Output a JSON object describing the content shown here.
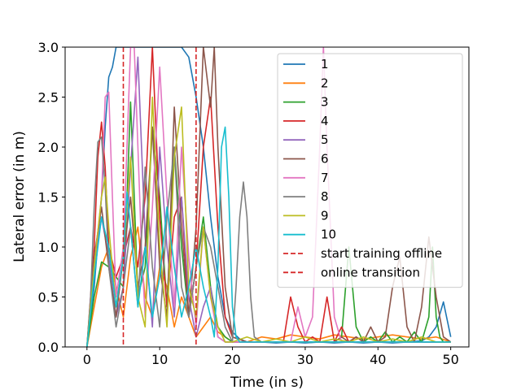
{
  "chart_data": {
    "type": "line",
    "xlabel": "Time (in s)",
    "ylabel": "Lateral error (in m)",
    "xlim": [
      -3,
      52.5
    ],
    "ylim": [
      0,
      3.0
    ],
    "xticks": [
      0,
      10,
      20,
      30,
      40,
      50
    ],
    "yticks": [
      0.0,
      0.5,
      1.0,
      1.5,
      2.0,
      2.5,
      3.0
    ],
    "xtick_labels": [
      "0",
      "10",
      "20",
      "30",
      "40",
      "50"
    ],
    "ytick_labels": [
      "0.0",
      "0.5",
      "1.0",
      "1.5",
      "2.0",
      "2.5",
      "3.0"
    ],
    "legend_position": "top-right",
    "grid": false,
    "vlines": [
      {
        "name": "start training offline",
        "x": 5,
        "color": "#d62728",
        "style": "dashed"
      },
      {
        "name": "online transition",
        "x": 15,
        "color": "#d62728",
        "style": "dashed"
      }
    ],
    "series": [
      {
        "name": "1",
        "color": "#1f77b4",
        "x": [
          0,
          1,
          2,
          2.5,
          3,
          3.5,
          4,
          5,
          5.5,
          6,
          7,
          8,
          9,
          10,
          11,
          12,
          13,
          14,
          15,
          16,
          17,
          18,
          19,
          20,
          21,
          22,
          24,
          26,
          28,
          30,
          32,
          34,
          36,
          38,
          40,
          42,
          44,
          46,
          47,
          48,
          49,
          50
        ],
        "y": [
          0,
          0.6,
          1.5,
          2.2,
          2.7,
          2.8,
          3,
          3,
          3,
          3,
          3,
          3,
          3,
          3,
          3,
          3,
          3,
          2.9,
          2.5,
          2.0,
          1.3,
          0.7,
          0.3,
          0.15,
          0.08,
          0.05,
          0.05,
          0.04,
          0.05,
          0.04,
          0.05,
          0.04,
          0.05,
          0.04,
          0.05,
          0.04,
          0.05,
          0.06,
          0.1,
          0.2,
          0.45,
          0.1
        ]
      },
      {
        "name": "2",
        "color": "#ff7f0e",
        "x": [
          0,
          1,
          2,
          3,
          4,
          5,
          6,
          7,
          8,
          9,
          10,
          11,
          12,
          13,
          14,
          15,
          16,
          17,
          18,
          19,
          20,
          22,
          24,
          26,
          28,
          30,
          32,
          34,
          36,
          38,
          40,
          42,
          44,
          46,
          48,
          50
        ],
        "y": [
          0,
          0.4,
          0.8,
          1.0,
          0.6,
          0.3,
          0.9,
          1.2,
          0.5,
          0.3,
          0.8,
          0.6,
          0.2,
          0.5,
          0.3,
          0.1,
          0.2,
          0.3,
          0.15,
          0.1,
          0.05,
          0.05,
          0.1,
          0.08,
          0.12,
          0.1,
          0.08,
          0.12,
          0.1,
          0.08,
          0.1,
          0.12,
          0.1,
          0.08,
          0.1,
          0.05
        ]
      },
      {
        "name": "3",
        "color": "#2ca02c",
        "x": [
          0,
          1,
          2,
          3,
          4,
          5,
          5.5,
          6,
          6.5,
          7,
          8,
          9,
          10,
          11,
          12,
          13,
          14,
          15,
          16,
          17,
          18,
          19,
          20,
          22,
          24,
          26,
          28,
          30,
          32,
          34,
          35,
          36,
          37,
          38,
          39,
          40,
          41,
          42,
          43,
          44,
          45,
          46,
          47,
          47.5,
          48,
          48.5,
          49,
          50
        ],
        "y": [
          0,
          0.5,
          0.85,
          0.8,
          0.7,
          0.6,
          1.5,
          2.45,
          1.5,
          0.5,
          0.8,
          2.2,
          1.5,
          0.4,
          2.0,
          1.0,
          0.3,
          0.8,
          1.3,
          0.6,
          0.2,
          0.1,
          0.05,
          0.05,
          0.05,
          0.05,
          0.05,
          0.05,
          0.05,
          0.05,
          0.1,
          1.0,
          0.2,
          0.05,
          0.1,
          0.05,
          0.15,
          0.05,
          0.1,
          0.05,
          0.15,
          0.05,
          0.3,
          1.0,
          0.3,
          0.1,
          0.05,
          0.05
        ]
      },
      {
        "name": "4",
        "color": "#d62728",
        "x": [
          0,
          1,
          1.5,
          2,
          2.5,
          3,
          4,
          5,
          6,
          7,
          8,
          9,
          10,
          11,
          12,
          13,
          14,
          15,
          16,
          17,
          18,
          19,
          20,
          22,
          24,
          26,
          27,
          28,
          29,
          30,
          31,
          32,
          33,
          34,
          35,
          36,
          37,
          38,
          40,
          42,
          44,
          46,
          48,
          50
        ],
        "y": [
          0,
          1.0,
          1.9,
          2.25,
          1.8,
          1.0,
          0.7,
          0.9,
          1.2,
          0.8,
          1.5,
          3.0,
          1.3,
          0.4,
          1.3,
          1.5,
          0.3,
          0.8,
          2.0,
          2.5,
          1.2,
          0.3,
          0.1,
          0.05,
          0.05,
          0.05,
          0.05,
          0.5,
          0.2,
          0.05,
          0.1,
          0.05,
          0.5,
          0.05,
          0.2,
          0.05,
          0.1,
          0.05,
          0.05,
          0.05,
          0.05,
          0.05,
          0.05,
          0.05
        ]
      },
      {
        "name": "5",
        "color": "#9467bd",
        "x": [
          0,
          1,
          2,
          3,
          4,
          5,
          6,
          7,
          8,
          9,
          10,
          11,
          12,
          13,
          14,
          15,
          16,
          17,
          18,
          19,
          20,
          22,
          24,
          26,
          28,
          30,
          32,
          34,
          36,
          38,
          40,
          42,
          44,
          46,
          48,
          50
        ],
        "y": [
          0,
          0.8,
          1.3,
          0.9,
          0.3,
          0.6,
          1.8,
          2.9,
          1.1,
          0.2,
          2.0,
          1.0,
          0.3,
          1.5,
          0.5,
          0.1,
          0.4,
          0.6,
          0.1,
          0.05,
          0.05,
          0.05,
          0.05,
          0.05,
          0.05,
          0.05,
          0.05,
          0.05,
          0.05,
          0.05,
          0.05,
          0.05,
          0.05,
          0.05,
          0.05,
          0.05
        ]
      },
      {
        "name": "6",
        "color": "#8c564b",
        "x": [
          0,
          1,
          2,
          3,
          4,
          5,
          6,
          7,
          8,
          9,
          10,
          11,
          12,
          13,
          14,
          15,
          16,
          17,
          17.5,
          18,
          19,
          20,
          22,
          24,
          26,
          28,
          30,
          32,
          34,
          35,
          36,
          37,
          38,
          39,
          40,
          41,
          42,
          43,
          44,
          45,
          46,
          47,
          48,
          49,
          50
        ],
        "y": [
          0,
          0.9,
          1.4,
          0.8,
          0.3,
          0.9,
          1.5,
          0.6,
          1.0,
          2.2,
          0.8,
          0.3,
          2.4,
          1.2,
          0.3,
          1.2,
          3.0,
          2.4,
          3.0,
          2.0,
          0.6,
          0.1,
          0.05,
          0.05,
          0.05,
          0.05,
          0.05,
          0.05,
          0.05,
          0.1,
          0.05,
          0.1,
          0.05,
          0.2,
          0.05,
          0.1,
          0.6,
          0.9,
          0.2,
          0.05,
          0.4,
          1.1,
          0.5,
          0.1,
          0.05
        ]
      },
      {
        "name": "7",
        "color": "#e377c2",
        "x": [
          0,
          1,
          2,
          2.5,
          3,
          3.5,
          4,
          5,
          6,
          6.5,
          7,
          7.5,
          8,
          9,
          10,
          11,
          12,
          13,
          14,
          15,
          16,
          17,
          18,
          19,
          20,
          22,
          24,
          26,
          28,
          29,
          30,
          31,
          32,
          32.5,
          33,
          34,
          35,
          36,
          38,
          40,
          42,
          44,
          46,
          48,
          50
        ],
        "y": [
          0,
          0.8,
          1.5,
          2.5,
          2.55,
          1.5,
          0.5,
          1.0,
          3.0,
          3.0,
          2.0,
          1.0,
          0.3,
          1.4,
          2.8,
          1.5,
          0.4,
          2.0,
          0.9,
          0.2,
          1.2,
          0.5,
          0.1,
          0.05,
          0.05,
          0.05,
          0.05,
          0.05,
          0.05,
          0.4,
          0.1,
          0.3,
          2.0,
          3.0,
          2.0,
          0.3,
          0.05,
          0.05,
          0.05,
          0.05,
          0.05,
          0.05,
          0.05,
          0.05,
          0.05
        ]
      },
      {
        "name": "8",
        "color": "#7f7f7f",
        "x": [
          0,
          0.5,
          1,
          1.5,
          2,
          2.5,
          3,
          4,
          5,
          6,
          7,
          8,
          9,
          10,
          11,
          12,
          13,
          14,
          15,
          16,
          17,
          18,
          19,
          20,
          20.5,
          21,
          21.5,
          22,
          22.5,
          23,
          24,
          26,
          28,
          30,
          32,
          34,
          36,
          38,
          40,
          42,
          44,
          46,
          48,
          50
        ],
        "y": [
          0,
          0.5,
          1.4,
          2.05,
          2.1,
          1.6,
          0.8,
          0.2,
          0.6,
          1.2,
          0.4,
          1.8,
          0.8,
          0.2,
          1.3,
          2.0,
          0.6,
          0.3,
          0.8,
          1.2,
          1.0,
          0.6,
          0.2,
          0.05,
          0.6,
          1.3,
          1.65,
          1.3,
          0.5,
          0.1,
          0.05,
          0.05,
          0.05,
          0.05,
          0.05,
          0.05,
          0.05,
          0.05,
          0.05,
          0.05,
          0.05,
          0.05,
          0.05,
          0.05
        ]
      },
      {
        "name": "9",
        "color": "#bcbd22",
        "x": [
          0,
          1,
          2,
          2.5,
          3,
          4,
          5,
          6,
          7,
          8,
          9,
          10,
          11,
          12,
          13,
          14,
          15,
          16,
          17,
          18,
          19,
          20,
          22,
          24,
          26,
          28,
          30,
          32,
          34,
          36,
          38,
          40,
          42,
          44,
          46,
          48,
          50
        ],
        "y": [
          0,
          0.8,
          1.5,
          1.7,
          1.2,
          0.4,
          0.9,
          1.9,
          0.5,
          0.2,
          2.5,
          1.0,
          0.2,
          1.9,
          2.4,
          0.6,
          0.3,
          1.2,
          0.5,
          0.2,
          0.05,
          0.05,
          0.1,
          0.05,
          0.08,
          0.05,
          0.1,
          0.05,
          0.08,
          0.05,
          0.1,
          0.05,
          0.08,
          0.05,
          0.1,
          0.05,
          0.05
        ]
      },
      {
        "name": "10",
        "color": "#17becf",
        "x": [
          0,
          1,
          2,
          3,
          4,
          5,
          5.5,
          6,
          7,
          8,
          9,
          10,
          11,
          12,
          13,
          14,
          15,
          16,
          17,
          17.5,
          18,
          18.5,
          19,
          19.5,
          20,
          20.5,
          21,
          22,
          24,
          26,
          28,
          30,
          32,
          34,
          36,
          38,
          40,
          42,
          44,
          46,
          48,
          50
        ],
        "y": [
          0,
          0.7,
          1.3,
          1.0,
          0.4,
          0.9,
          1.55,
          1.2,
          0.4,
          1.0,
          0.3,
          0.7,
          1.4,
          0.8,
          0.3,
          0.6,
          1.0,
          0.6,
          0.3,
          0.1,
          0.8,
          2.0,
          2.2,
          1.5,
          0.4,
          0.1,
          0.05,
          0.05,
          0.05,
          0.05,
          0.05,
          0.05,
          0.05,
          0.05,
          0.05,
          0.05,
          0.05,
          0.05,
          0.05,
          0.05,
          0.05,
          0.05
        ]
      }
    ]
  }
}
